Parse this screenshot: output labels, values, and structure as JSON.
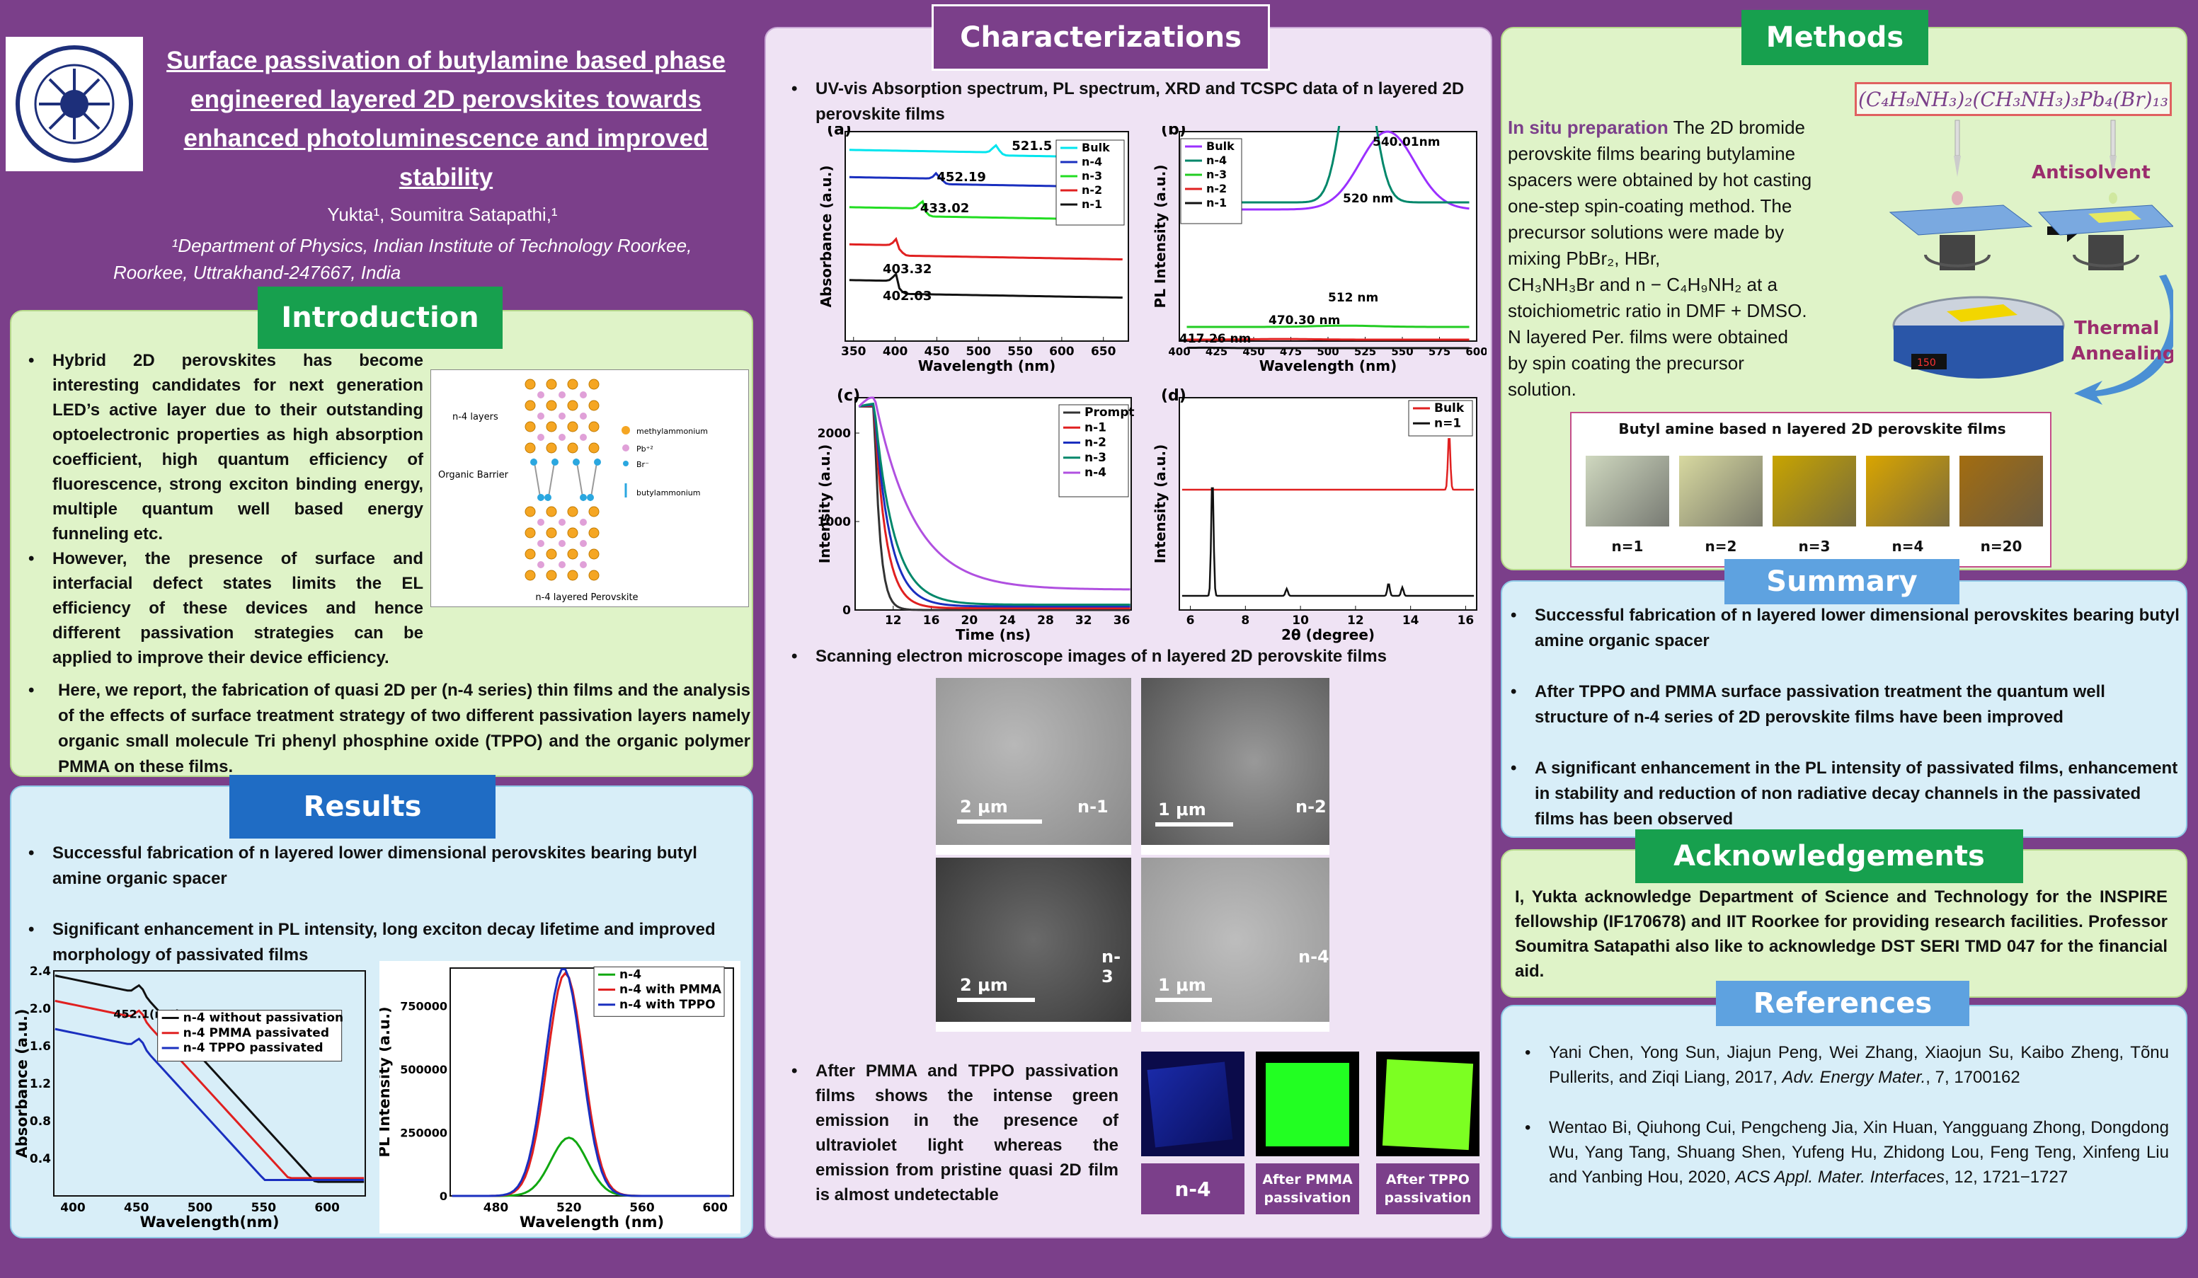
{
  "title": {
    "lines": [
      "Surface passivation of butylamine based phase",
      "engineered layered 2D perovskites towards",
      "enhanced photoluminescence and improved",
      "stability"
    ]
  },
  "authors": "Yukta¹, Soumitra Satapathi,¹",
  "affiliation": [
    "¹Department of Physics, Indian Institute of Technology Roorkee,",
    "Roorkee, Uttrakhand-247667, India"
  ],
  "logo": {
    "text": "INDIAN INSTITUTE OF TECHNOLOGY ROORKEE"
  },
  "colors": {
    "purple": "#7b3f8a",
    "green_header": "#17a04e",
    "blue_header": "#1f6cc4",
    "light_green": "#dff3c8",
    "light_blue": "#d8eef8",
    "light_purple": "#efe3f4"
  },
  "introduction": {
    "header": "Introduction",
    "bullets": [
      "Hybrid 2D perovskites has become interesting candidates for next generation LED’s active layer due to their outstanding optoelectronic properties as high absorption coefficient, high quantum efficiency of fluorescence, strong exciton binding energy, multiple quantum well based energy funneling etc.",
      "However, the presence of surface and interfacial defect states limits the EL efficiency of these devices and hence different passivation strategies can be applied to improve their device efficiency.",
      "Here, we report, the fabrication of quasi 2D per (n-4 series) thin films and the analysis of the effects of surface treatment strategy of two different passivation layers namely organic small molecule Tri phenyl phosphine oxide (TPPO) and the organic polymer PMMA on these films."
    ],
    "structure_fig": {
      "n4_layers": "n-4 layers",
      "organic_barrier": "Organic Barrier",
      "legend": [
        "methylammonium",
        "Pb⁺²",
        "Br⁻",
        "butylammonium"
      ],
      "caption": "n-4 layered Perovskite"
    }
  },
  "results": {
    "header": "Results",
    "bullets": [
      "Successful fabrication of n layered lower dimensional perovskites bearing butyl amine organic spacer",
      "Significant enhancement  in PL intensity, long exciton decay lifetime and improved morphology of passivated films"
    ]
  },
  "characterizations": {
    "header": "Characterizations",
    "bullet1": "UV-vis Absorption spectrum, PL spectrum, XRD and TCSPC  data of n layered 2D perovskite films",
    "bullet2": "Scanning electron microscope images of n layered 2D perovskite films",
    "bullet3": "After PMMA and TPPO passivation films shows the intense green emission in the presence of ultraviolet light whereas the emission from pristine quasi 2D film is almost undetectable",
    "sem": [
      {
        "scale": "2 μm",
        "label": "n-1"
      },
      {
        "scale": "1 μm",
        "label": "n-2"
      },
      {
        "scale": "2 μm",
        "label": "n-3"
      },
      {
        "scale": "1 μm",
        "label": "n-4"
      }
    ],
    "uv_labels": [
      "n-4",
      "After PMMA passivation",
      "After TPPO passivation"
    ]
  },
  "methods": {
    "header": "Methods",
    "formula": "(C₄H₉NH₃)₂(CH₃NH₃)₃Pb₄(Br)₁₃",
    "lead": "In situ preparation",
    "text_lines": [
      "The 2D bromide",
      "perovskite films bearing butylamine",
      "spacers were obtained by hot casting",
      "one-step spin-coating method. The",
      "precursor solutions  were made by",
      "mixing  PbBr₂, HBr,",
      "CH₃NH₃Br and n − C₄H₉NH₂ at a",
      "stoichiometric ratio in DMF + DMSO.",
      "N layered Per. films were obtained",
      "by spin coating the precursor",
      "solution."
    ],
    "antisolvent": "Antisolvent",
    "thermal": [
      "Thermal",
      "Annealing"
    ],
    "hotplate_display": "150",
    "films_title": "Butyl amine based n layered 2D perovskite films",
    "films": [
      {
        "label": "n=1",
        "color": "#cfd8bf"
      },
      {
        "label": "n=2",
        "color": "#d8d9a0"
      },
      {
        "label": "n=3",
        "color": "#c8a400"
      },
      {
        "label": "n=4",
        "color": "#d9a500"
      },
      {
        "label": "n=20",
        "color": "#a36d10"
      }
    ]
  },
  "summary": {
    "header": "Summary",
    "bullets": [
      "Successful fabrication of n layered lower dimensional perovskites bearing butyl amine organic spacer",
      "After TPPO and PMMA surface passivation treatment the quantum well structure of n-4 series of 2D perovskite films have been improved",
      "A significant enhancement in the PL intensity of passivated films, enhancement in stability and reduction of non radiative decay channels in the passivated films has been observed"
    ]
  },
  "acknowledgements": {
    "header": "Acknowledgements",
    "text": "I, Yukta  acknowledge Department of Science and Technology for the INSPIRE fellowship (IF170678) and IIT Roorkee for providing research facilities. Professor Soumitra Satapathi also like to acknowledge DST SERI TMD 047 for the financial aid."
  },
  "references": {
    "header": "References",
    "items": [
      {
        "authors": "Yani Chen, Yong Sun, Jiajun Peng, Wei Zhang, Xiaojun Su, Kaibo Zheng, Tõnu Pullerits, and Ziqi Liang, 2017,",
        "journal": "Adv. Energy Mater.",
        "rest": ", 7, 1700162"
      },
      {
        "authors": "Wentao Bi, Qiuhong Cui, Pengcheng Jia, Xin Huan, Yangguang Zhong, Dongdong Wu, Yang Tang, Shuang Shen, Yufeng Hu, Zhidong Lou, Feng Teng, Xinfeng Liu and Yanbing Hou, 2020,",
        "journal": "ACS Appl. Mater. Interfaces",
        "rest": ", 12, 1721−1727"
      }
    ]
  },
  "chart_data": [
    {
      "id": "a",
      "panel": "(a)",
      "type": "line",
      "xlabel": "Wavelength (nm)",
      "ylabel": "Absorbance (a.u.)",
      "xlim": [
        340,
        680
      ],
      "xticks": [
        350,
        400,
        450,
        500,
        550,
        600,
        650
      ],
      "series": [
        {
          "name": "Bulk",
          "color": "#00e5ee"
        },
        {
          "name": "n-4",
          "color": "#1a2fbf"
        },
        {
          "name": "n-3",
          "color": "#22dd22"
        },
        {
          "name": "n-2",
          "color": "#e02020"
        },
        {
          "name": "n-1",
          "color": "#111111"
        }
      ],
      "annotations": [
        "521.5",
        "452.19",
        "433.02",
        "403.32",
        "402.03"
      ]
    },
    {
      "id": "b",
      "panel": "(b)",
      "type": "line",
      "xlabel": "Wavelength (nm)",
      "ylabel": "PL Intensity (a.u.)",
      "xlim": [
        400,
        600
      ],
      "xticks": [
        400,
        425,
        450,
        475,
        500,
        525,
        550,
        575,
        600
      ],
      "series": [
        {
          "name": "Bulk",
          "color": "#9b30ff"
        },
        {
          "name": "n-4",
          "color": "#00876a"
        },
        {
          "name": "n-3",
          "color": "#22cc22"
        },
        {
          "name": "n-2",
          "color": "#e02020"
        },
        {
          "name": "n-1",
          "color": "#111111"
        }
      ],
      "annotations": [
        "540.01nm",
        "520 nm",
        "512 nm",
        "470.30 nm",
        "417.26 nm"
      ]
    },
    {
      "id": "c",
      "panel": "(c)",
      "type": "line",
      "xlabel": "Time (ns)",
      "ylabel": "Intensity (a.u.)",
      "xlim": [
        8,
        37
      ],
      "ylim": [
        0,
        2400
      ],
      "xticks": [
        12,
        16,
        20,
        24,
        28,
        32,
        36
      ],
      "yticks": [
        0,
        1000,
        2000
      ],
      "series": [
        {
          "name": "Prompt",
          "color": "#333333"
        },
        {
          "name": "n-1",
          "color": "#e02020"
        },
        {
          "name": "n-2",
          "color": "#1a2fbf"
        },
        {
          "name": "n-3",
          "color": "#00876a"
        },
        {
          "name": "n-4",
          "color": "#b050e0"
        }
      ]
    },
    {
      "id": "d",
      "panel": "(d)",
      "type": "line",
      "xlabel": "2θ (degree)",
      "ylabel": "Intensity (a.u.)",
      "xlim": [
        5.6,
        16.4
      ],
      "xticks": [
        6,
        8,
        10,
        12,
        14,
        16
      ],
      "series": [
        {
          "name": "Bulk",
          "color": "#e02020",
          "peaks": [
            15.4
          ]
        },
        {
          "name": "n=1",
          "color": "#111111",
          "peaks": [
            6.8,
            9.5,
            13.2,
            13.7
          ]
        }
      ]
    },
    {
      "id": "abs_pass",
      "type": "line",
      "xlabel": "Wavelength(nm)",
      "ylabel": "Absorbance (a.u.)",
      "xlim": [
        385,
        630
      ],
      "ylim": [
        0,
        2.4
      ],
      "xticks": [
        400,
        450,
        500,
        550,
        600
      ],
      "yticks": [
        0.4,
        0.8,
        1.2,
        1.6,
        2.0,
        2.4
      ],
      "annotation": "452.1(n-4)",
      "series": [
        {
          "name": "n-4 without passivation",
          "color": "#111111"
        },
        {
          "name": "n-4 PMMA passivated",
          "color": "#e02020"
        },
        {
          "name": "n-4 TPPO passivated",
          "color": "#1a2fbf"
        }
      ]
    },
    {
      "id": "pl_pass",
      "type": "line",
      "xlabel": "Wavelength (nm)",
      "ylabel": "PL Intensity (a.u.)",
      "xlim": [
        455,
        610
      ],
      "ylim": [
        0,
        900000
      ],
      "xticks": [
        480,
        520,
        560,
        600
      ],
      "yticks": [
        0,
        250000,
        500000,
        750000
      ],
      "series": [
        {
          "name": "n-4",
          "color": "#11a811",
          "peak": [
            520,
            230000
          ]
        },
        {
          "name": "n-4 with PMMA",
          "color": "#e02020",
          "peak": [
            518,
            880000
          ]
        },
        {
          "name": "n-4 with TPPO",
          "color": "#1a2fbf",
          "peak": [
            517,
            900000
          ]
        }
      ]
    }
  ]
}
